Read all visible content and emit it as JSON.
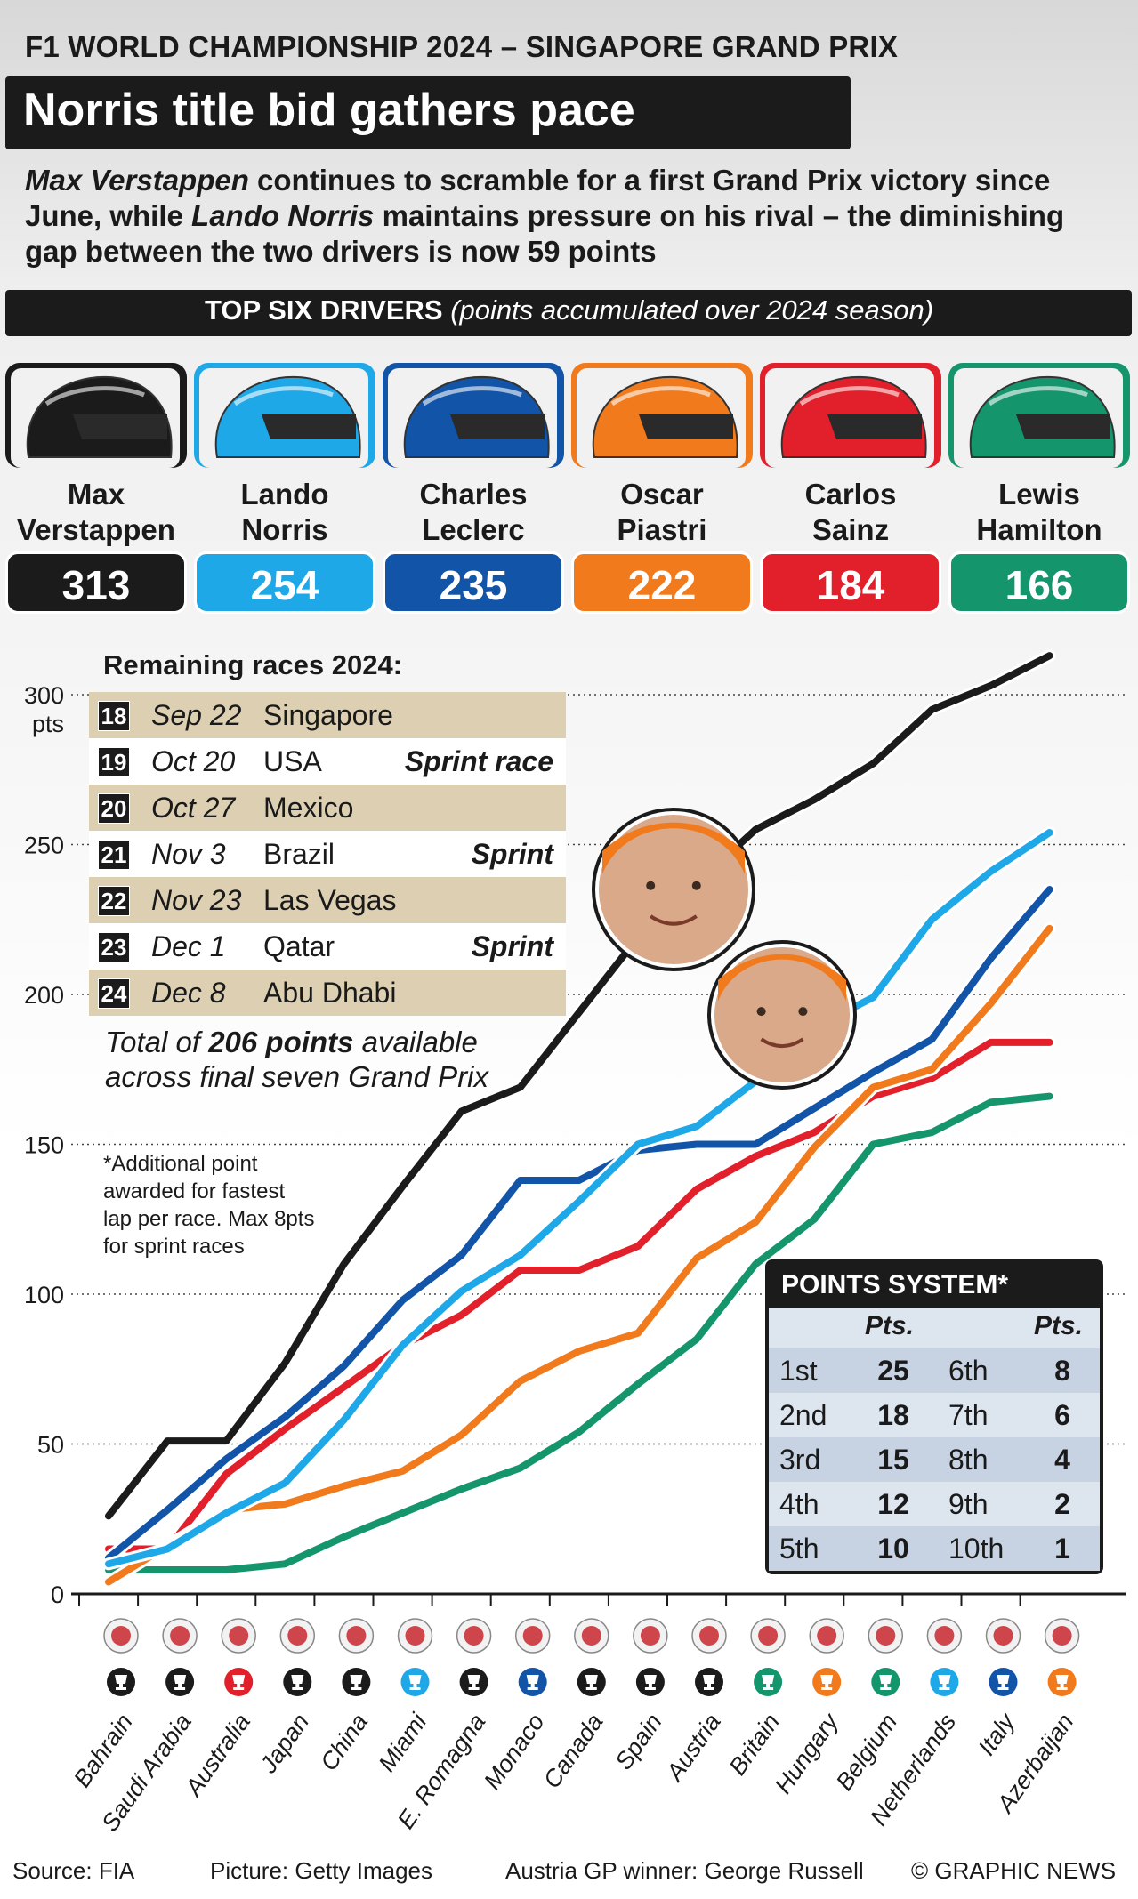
{
  "header": {
    "kicker": "F1 WORLD CHAMPIONSHIP 2024 – SINGAPORE GRAND PRIX",
    "headline": "Norris title bid gathers pace",
    "intro_name1": "Max Verstappen",
    "intro_part1": " continues to scramble for a first Grand Prix victory since June, while ",
    "intro_name2": "Lando Norris",
    "intro_part2": " maintains pressure on his rival – the diminishing gap between the two drivers is now 59 points"
  },
  "top_six": {
    "title_bold": "TOP SIX DRIVERS",
    "title_italic": "(points accumulated over 2024 season)",
    "drivers": [
      {
        "first": "Max",
        "last": "Verstappen",
        "points": "313",
        "color": "#1b1b1b"
      },
      {
        "first": "Lando",
        "last": "Norris",
        "points": "254",
        "color": "#1fa8e8"
      },
      {
        "first": "Charles",
        "last": "Leclerc",
        "points": "235",
        "color": "#1154a8"
      },
      {
        "first": "Oscar",
        "last": "Piastri",
        "points": "222",
        "color": "#f07a1c"
      },
      {
        "first": "Carlos",
        "last": "Sainz",
        "points": "184",
        "color": "#e2202b"
      },
      {
        "first": "Lewis",
        "last": "Hamilton",
        "points": "166",
        "color": "#15956b"
      }
    ]
  },
  "remaining": {
    "title": "Remaining races 2024:",
    "races": [
      {
        "num": "18",
        "date": "Sep 22",
        "name": "Singapore",
        "note": ""
      },
      {
        "num": "19",
        "date": "Oct 20",
        "name": "USA",
        "note": "Sprint race"
      },
      {
        "num": "20",
        "date": "Oct 27",
        "name": "Mexico",
        "note": ""
      },
      {
        "num": "21",
        "date": "Nov 3",
        "name": "Brazil",
        "note": "Sprint"
      },
      {
        "num": "22",
        "date": "Nov 23",
        "name": "Las Vegas",
        "note": ""
      },
      {
        "num": "23",
        "date": "Dec 1",
        "name": "Qatar",
        "note": "Sprint"
      },
      {
        "num": "24",
        "date": "Dec 8",
        "name": "Abu Dhabi",
        "note": ""
      }
    ],
    "total_pre": "Total of ",
    "total_bold": "206 points",
    "total_post": " available across final seven Grand Prix",
    "fastest_note": "*Additional point awarded for fastest lap per race. Max 8pts for sprint races"
  },
  "points_system": {
    "title": "POINTS SYSTEM*",
    "header": "Pts.",
    "rows": [
      {
        "p1": "1st",
        "v1": "25",
        "p2": "6th",
        "v2": "8"
      },
      {
        "p1": "2nd",
        "v1": "18",
        "p2": "7th",
        "v2": "6"
      },
      {
        "p1": "3rd",
        "v1": "15",
        "p2": "8th",
        "v2": "4"
      },
      {
        "p1": "4th",
        "v1": "12",
        "p2": "9th",
        "v2": "2"
      },
      {
        "p1": "5th",
        "v1": "10",
        "p2": "10th",
        "v2": "1"
      }
    ]
  },
  "chart_data": {
    "type": "line",
    "yunit": "pts",
    "ylim": [
      0,
      320
    ],
    "yticks": [
      "0",
      "50",
      "100",
      "150",
      "200",
      "250",
      "300"
    ],
    "grid": true,
    "categories": [
      "Bahrain",
      "Saudi Arabia",
      "Australia",
      "Japan",
      "China",
      "Miami",
      "E. Romagna",
      "Monaco",
      "Canada",
      "Spain",
      "Austria",
      "Britain",
      "Hungary",
      "Belgium",
      "Netherlands",
      "Italy",
      "Azerbaijan"
    ],
    "winner_colors": [
      "#1b1b1b",
      "#1b1b1b",
      "#e2202b",
      "#1b1b1b",
      "#1b1b1b",
      "#1fa8e8",
      "#1b1b1b",
      "#1154a8",
      "#1b1b1b",
      "#1b1b1b",
      "#1b1b1b",
      "#15956b",
      "#f07a1c",
      "#15956b",
      "#1fa8e8",
      "#1154a8",
      "#f07a1c"
    ],
    "series": [
      {
        "name": "Max Verstappen",
        "color": "#1b1b1b",
        "values": [
          26,
          51,
          51,
          77,
          110,
          136,
          161,
          169,
          194,
          219,
          237,
          255,
          265,
          277,
          295,
          303,
          313
        ]
      },
      {
        "name": "Lando Norris",
        "color": "#1fa8e8",
        "values": [
          10,
          15,
          27,
          37,
          58,
          83,
          101,
          113,
          131,
          150,
          156,
          171,
          189,
          199,
          225,
          241,
          254
        ]
      },
      {
        "name": "Charles Leclerc",
        "color": "#1154a8",
        "values": [
          12,
          28,
          45,
          59,
          76,
          98,
          113,
          138,
          138,
          148,
          150,
          150,
          162,
          174,
          185,
          212,
          235
        ]
      },
      {
        "name": "Oscar Piastri",
        "color": "#f07a1c",
        "values": [
          4,
          16,
          28,
          30,
          36,
          41,
          53,
          71,
          81,
          87,
          112,
          124,
          149,
          169,
          175,
          197,
          222
        ]
      },
      {
        "name": "Carlos Sainz",
        "color": "#e2202b",
        "values": [
          15,
          15,
          40,
          55,
          69,
          83,
          93,
          108,
          108,
          116,
          135,
          146,
          154,
          166,
          172,
          184,
          184
        ]
      },
      {
        "name": "Lewis Hamilton",
        "color": "#15956b",
        "values": [
          8,
          8,
          8,
          10,
          19,
          27,
          35,
          42,
          54,
          70,
          85,
          110,
          125,
          150,
          154,
          164,
          166
        ]
      }
    ]
  },
  "footer": {
    "source": "Source: FIA",
    "picture": "Picture: Getty Images",
    "austria": "Austria GP winner: George Russell",
    "copyright": "© GRAPHIC NEWS"
  }
}
